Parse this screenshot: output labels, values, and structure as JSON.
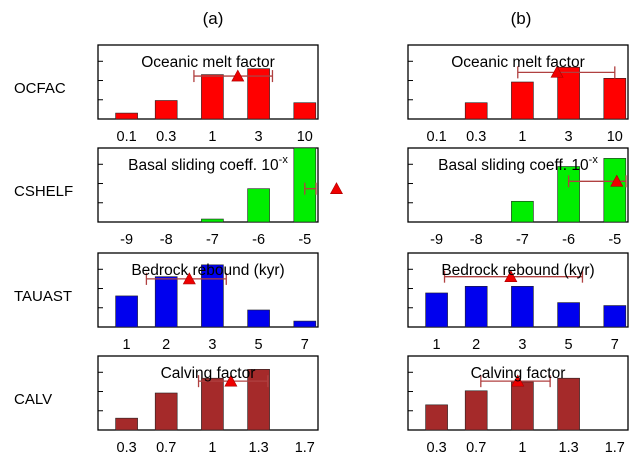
{
  "columns": [
    {
      "label": "(a)"
    },
    {
      "label": "(b)"
    }
  ],
  "rows": [
    {
      "param": "OCFAC",
      "color": "#ff0000",
      "title": "Oceanic melt factor",
      "title_sup": "",
      "ticks": [
        "0.1",
        "0.3",
        "1",
        "3",
        "10"
      ]
    },
    {
      "param": "CSHELF",
      "color": "#00ee00",
      "title": "Basal sliding coeff. 10",
      "title_sup": "-x",
      "ticks": [
        "-9",
        "-8",
        "-7",
        "-6",
        "-5"
      ]
    },
    {
      "param": "TAUAST",
      "color": "#0000ee",
      "title": "Bedrock rebound (kyr)",
      "title_sup": "",
      "ticks": [
        "1",
        "2",
        "3",
        "5",
        "7"
      ]
    },
    {
      "param": "CALV",
      "color": "#a52a2a",
      "title": "Calving factor",
      "title_sup": "",
      "ticks": [
        "0.3",
        "0.7",
        "1",
        "1.3",
        "1.7"
      ]
    }
  ],
  "chart_data": [
    {
      "type": "bar",
      "panel": "(a)",
      "parameter": "OCFAC",
      "title": "Oceanic melt factor",
      "categories": [
        "0.1",
        "0.3",
        "1",
        "3",
        "10"
      ],
      "values": [
        0.08,
        0.25,
        0.6,
        0.68,
        0.22
      ],
      "ylim": [
        0,
        1
      ],
      "mean": 2.55,
      "range": [
        1.6,
        3.3
      ],
      "mean_level": 0.58,
      "grid": false
    },
    {
      "type": "bar",
      "panel": "(b)",
      "parameter": "OCFAC",
      "title": "Oceanic melt factor",
      "categories": [
        "0.1",
        "0.3",
        "1",
        "3",
        "10"
      ],
      "values": [
        0.0,
        0.22,
        0.5,
        0.7,
        0.55
      ],
      "ylim": [
        0,
        1
      ],
      "mean": 2.75,
      "range": [
        1.9,
        4.0
      ],
      "mean_level": 0.63,
      "grid": false
    },
    {
      "type": "bar",
      "panel": "(a)",
      "parameter": "CSHELF",
      "title": "Basal sliding coeff. 10^-x",
      "categories": [
        "-9",
        "-8",
        "-7",
        "-6",
        "-5"
      ],
      "values": [
        0.0,
        0.0,
        0.04,
        0.45,
        1.0
      ],
      "ylim": [
        0,
        1
      ],
      "mean": 4.8,
      "range": [
        4.0,
        5.4
      ],
      "mean_level": 0.45,
      "grid": false
    },
    {
      "type": "bar",
      "panel": "(b)",
      "parameter": "CSHELF",
      "title": "Basal sliding coeff. 10^-x",
      "categories": [
        "-9",
        "-8",
        "-7",
        "-6",
        "-5"
      ],
      "values": [
        0.0,
        0.0,
        0.28,
        0.75,
        0.86
      ],
      "ylim": [
        0,
        1
      ],
      "mean": 4.05,
      "range": [
        3.0,
        5.2
      ],
      "mean_level": 0.55,
      "grid": false
    },
    {
      "type": "bar",
      "panel": "(a)",
      "parameter": "TAUAST",
      "title": "Bedrock rebound (kyr)",
      "categories": [
        "1",
        "2",
        "3",
        "5",
        "7"
      ],
      "values": [
        0.42,
        0.68,
        0.84,
        0.23,
        0.08
      ],
      "ylim": [
        0,
        1
      ],
      "mean": 1.5,
      "range": [
        0.5,
        2.3
      ],
      "mean_level": 0.65,
      "grid": false
    },
    {
      "type": "bar",
      "panel": "(b)",
      "parameter": "TAUAST",
      "title": "Bedrock rebound (kyr)",
      "categories": [
        "1",
        "2",
        "3",
        "5",
        "7"
      ],
      "values": [
        0.46,
        0.55,
        0.55,
        0.33,
        0.29
      ],
      "ylim": [
        0,
        1
      ],
      "mean": 1.75,
      "range": [
        0.2,
        3.3
      ],
      "mean_level": 0.68,
      "grid": false
    },
    {
      "type": "bar",
      "panel": "(a)",
      "parameter": "CALV",
      "title": "Calving factor",
      "categories": [
        "0.3",
        "0.7",
        "1",
        "1.3",
        "1.7"
      ],
      "values": [
        0.16,
        0.5,
        0.7,
        0.82,
        0.0
      ],
      "ylim": [
        0,
        1
      ],
      "mean": 2.4,
      "range": [
        1.7,
        3.2
      ],
      "mean_level": 0.66,
      "grid": false
    },
    {
      "type": "bar",
      "panel": "(b)",
      "parameter": "CALV",
      "title": "Calving factor",
      "categories": [
        "0.3",
        "0.7",
        "1",
        "1.3",
        "1.7"
      ],
      "values": [
        0.34,
        0.53,
        0.65,
        0.7,
        0.0
      ],
      "ylim": [
        0,
        1
      ],
      "mean": 1.9,
      "range": [
        1.1,
        2.6
      ],
      "mean_level": 0.66,
      "grid": false
    }
  ]
}
